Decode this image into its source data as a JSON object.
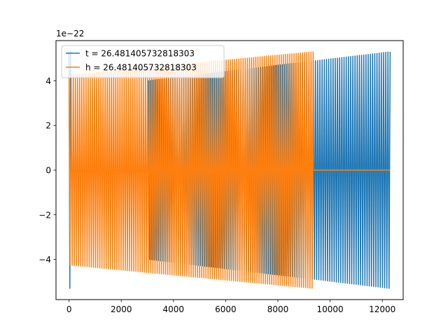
{
  "chart_data": {
    "type": "line",
    "title": "",
    "xlabel": "",
    "ylabel": "",
    "y_offset_label": "1e−22",
    "xlim": [
      -500,
      12800
    ],
    "ylim": [
      -5.8,
      5.8
    ],
    "x_ticks": [
      0,
      2000,
      4000,
      6000,
      8000,
      10000,
      12000
    ],
    "x_tick_labels": [
      "0",
      "2000",
      "4000",
      "6000",
      "8000",
      "10000",
      "12000"
    ],
    "y_ticks": [
      -4,
      -2,
      0,
      2,
      4
    ],
    "y_tick_labels": [
      "−4",
      "−2",
      "0",
      "2",
      "4"
    ],
    "grid": false,
    "legend_position": "upper-left",
    "series": [
      {
        "name": "t = 26.481405732818303",
        "color": "#1f77b4",
        "segments": [
          {
            "x_start": 0,
            "x_end": 60,
            "cycles": 1,
            "amp_start": 5.3,
            "amp_end": 5.3,
            "offset": 0
          },
          {
            "x_start": 60,
            "x_end": 3050,
            "cycles": 1,
            "amp_start": 0.0,
            "amp_end": 0.0,
            "offset": 0
          },
          {
            "x_start": 3050,
            "x_end": 12300,
            "cycles": 110,
            "amp_start": 4.0,
            "amp_end": 5.3,
            "offset": 0
          }
        ]
      },
      {
        "name": "h = 26.481405732818303",
        "color": "#ff7f0e",
        "segments": [
          {
            "x_start": 0,
            "x_end": 9350,
            "cycles": 115,
            "amp_start": 4.25,
            "amp_end": 5.3,
            "offset": 0
          },
          {
            "x_start": 9350,
            "x_end": 12300,
            "cycles": 1,
            "amp_start": 0.0,
            "amp_end": 0.0,
            "offset": 0
          }
        ]
      }
    ]
  }
}
